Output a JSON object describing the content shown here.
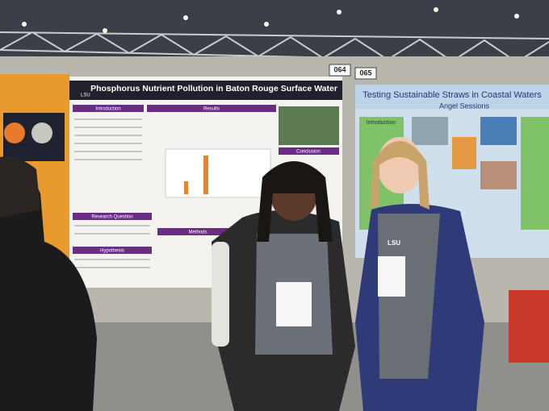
{
  "posters": [
    {
      "number": "064",
      "title": "Phosphorus Nutrient Pollution in Baton Rouge Surface Water",
      "sections": [
        "Introduction",
        "Results",
        "Conclusion",
        "Research Question",
        "Methods",
        "Hypothesis"
      ]
    },
    {
      "number": "065",
      "title": "Testing Sustainable Straws in Coastal Waters",
      "author": "Angel Sessions",
      "sections": [
        "Introduction"
      ]
    }
  ],
  "logo": "LSU"
}
